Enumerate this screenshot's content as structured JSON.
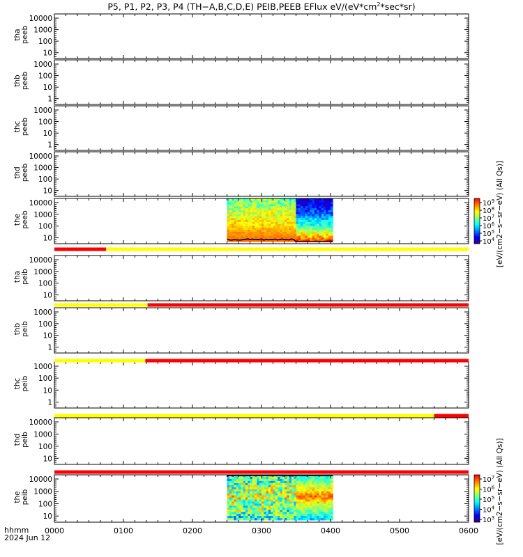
{
  "chart_data": {
    "type": "heatmap",
    "title_parts": {
      "prefix": "P5, P1, P2, P3, P4 (TH−A,B,C,D,E) PEIB,PEEB EFlux eV/(eV*cm",
      "sup": "2",
      "suffix": "*sec*sr)"
    },
    "x_axis": {
      "label_line1": "hhmm",
      "label_line2": "2024 Jun 12",
      "tick_labels": [
        "0000",
        "0100",
        "0200",
        "0300",
        "0400",
        "0500",
        "0600"
      ],
      "range_minutes": [
        0,
        360
      ]
    },
    "colors": {
      "flag_red": "#ff0000",
      "flag_yellow": "#ffff00",
      "frame": "#000000",
      "colormap": [
        "#3a0080",
        "#0000ff",
        "#0080ff",
        "#00ffff",
        "#80ff80",
        "#ffff00",
        "#ff8000",
        "#ff0000"
      ]
    },
    "panels": [
      {
        "sat": "tha",
        "inst": "peeb",
        "ticks": [
          "10000",
          "1000",
          "100",
          "10"
        ],
        "has_data": false
      },
      {
        "sat": "thb",
        "inst": "peeb",
        "ticks": [
          "1000",
          "100",
          "10",
          "1"
        ],
        "has_data": false
      },
      {
        "sat": "thc",
        "inst": "peeb",
        "ticks": [
          "1000",
          "100",
          "10",
          "1"
        ],
        "has_data": false
      },
      {
        "sat": "thd",
        "inst": "peeb",
        "ticks": [
          "10000",
          "1000",
          "100",
          "10"
        ],
        "has_data": false
      },
      {
        "sat": "the",
        "inst": "peeb",
        "ticks": [
          "10000",
          "1000",
          "100",
          "10"
        ],
        "has_data": true,
        "data_minutes": [
          150,
          242
        ],
        "log_range": [
          0.8,
          4.5
        ]
      },
      {
        "sat": "tha",
        "inst": "peib",
        "ticks": [
          "10000",
          "1000",
          "100",
          "10"
        ],
        "has_data": false
      },
      {
        "sat": "thb",
        "inst": "peib",
        "ticks": [
          "1000",
          "100",
          "10",
          "1"
        ],
        "has_data": false
      },
      {
        "sat": "thc",
        "inst": "peib",
        "ticks": [
          "1000",
          "100",
          "10",
          "1"
        ],
        "has_data": false
      },
      {
        "sat": "thd",
        "inst": "peib",
        "ticks": [
          "10000",
          "1000",
          "100",
          "10"
        ],
        "has_data": false
      },
      {
        "sat": "the",
        "inst": "peib",
        "ticks": [
          "10000",
          "1000",
          "100",
          "10"
        ],
        "has_data": true,
        "data_minutes": [
          150,
          242
        ],
        "log_range": [
          0.8,
          4.5
        ]
      }
    ],
    "flag_bars": [
      {
        "after_panel": 4,
        "segments": [
          {
            "from": 0,
            "to": 45,
            "color": "red"
          },
          {
            "from": 45,
            "to": 360,
            "color": "yellow"
          }
        ]
      },
      {
        "after_panel": 5,
        "segments": [
          {
            "from": 0,
            "to": 81,
            "color": "yellow"
          },
          {
            "from": 81,
            "to": 360,
            "color": "red"
          }
        ]
      },
      {
        "after_panel": 6,
        "segments": [
          {
            "from": 0,
            "to": 79,
            "color": "yellow"
          },
          {
            "from": 79,
            "to": 360,
            "color": "red"
          }
        ]
      },
      {
        "after_panel": 7,
        "segments": [
          {
            "from": 0,
            "to": 330,
            "color": "yellow"
          },
          {
            "from": 330,
            "to": 360,
            "color": "red"
          }
        ]
      },
      {
        "after_panel": 8,
        "segments": [
          {
            "from": 0,
            "to": 360,
            "color": "red"
          }
        ]
      }
    ],
    "colorbars": [
      {
        "for_panel": 4,
        "label": "[eV/(cm2−s−sr−eV) (All Qs)]",
        "tick_mantissa": "10",
        "exponents": [
          "9",
          "8",
          "7",
          "6",
          "5",
          "4"
        ]
      },
      {
        "for_panel": 9,
        "label": "[eV/(cm2−s−sr−eV) (All Qs)]",
        "tick_mantissa": "10",
        "exponents": [
          "7",
          "6",
          "5",
          "4",
          "3"
        ]
      }
    ]
  }
}
